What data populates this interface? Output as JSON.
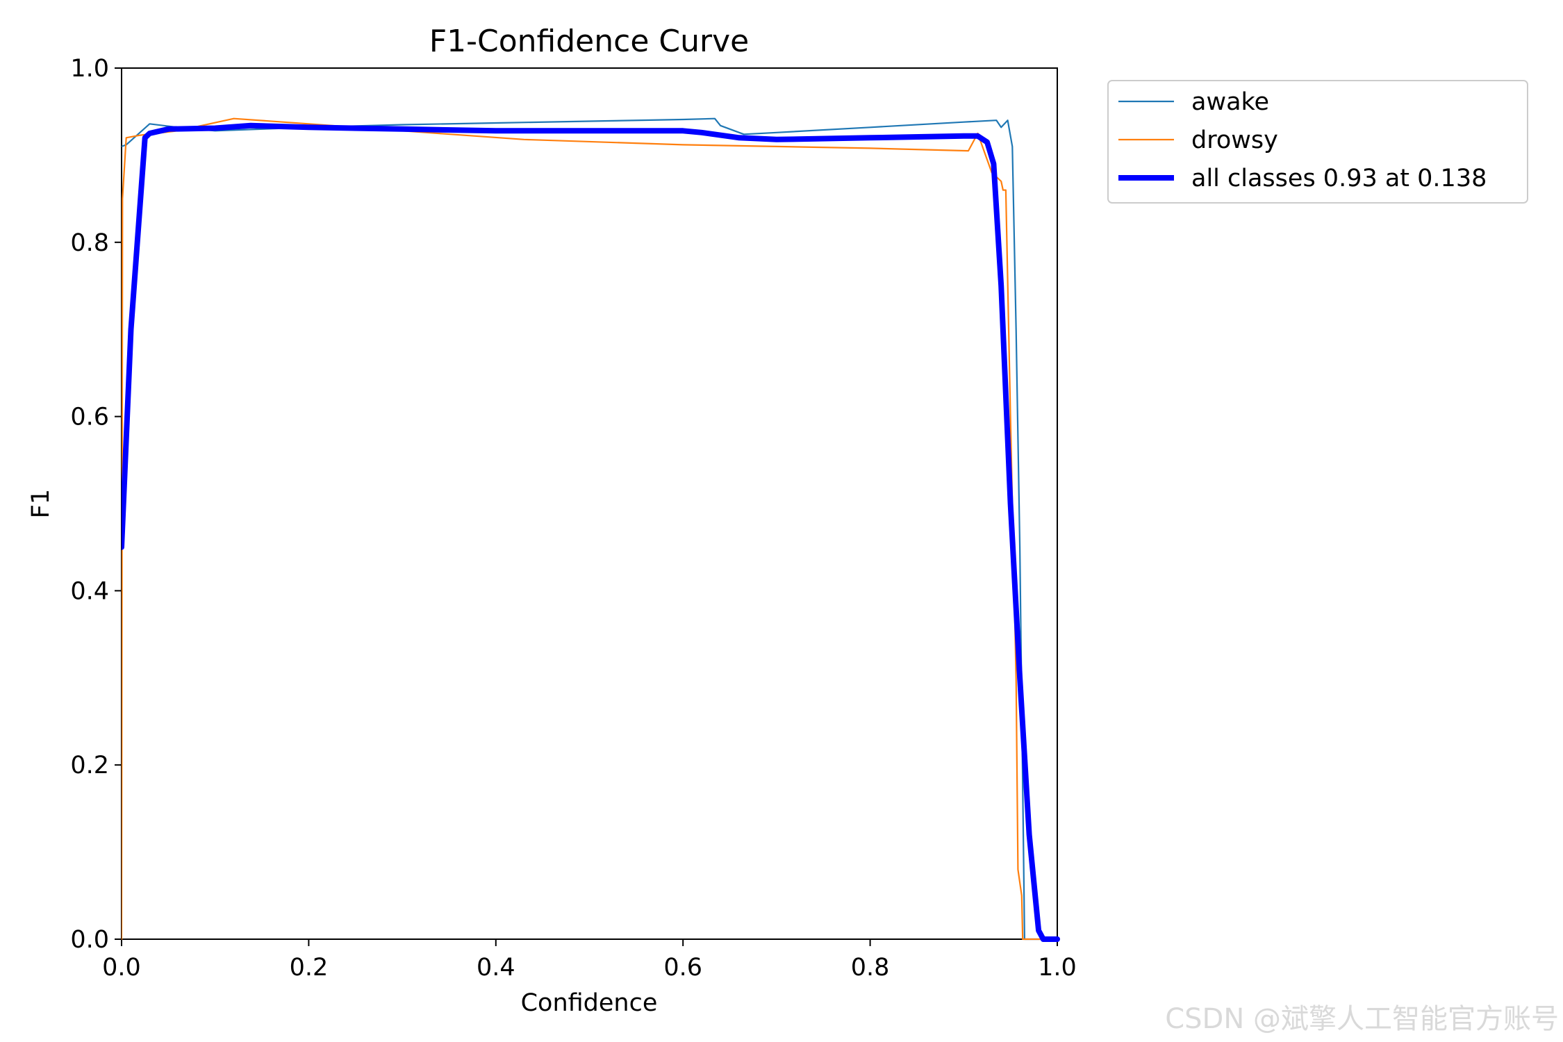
{
  "chart_data": {
    "type": "line",
    "title": "F1-Confidence Curve",
    "xlabel": "Confidence",
    "ylabel": "F1",
    "xlim": [
      0.0,
      1.0
    ],
    "ylim": [
      0.0,
      1.0
    ],
    "xticks": [
      "0.0",
      "0.2",
      "0.4",
      "0.6",
      "0.8",
      "1.0"
    ],
    "yticks": [
      "0.0",
      "0.2",
      "0.4",
      "0.6",
      "0.8",
      "1.0"
    ],
    "grid": false,
    "legend_position": "outside-top-right",
    "series": [
      {
        "name": "awake",
        "color": "#1f77b4",
        "line_width": "thin",
        "x": [
          0.0,
          0.005,
          0.03,
          0.06,
          0.1,
          0.2,
          0.3,
          0.4,
          0.5,
          0.6,
          0.634,
          0.64,
          0.665,
          0.7,
          0.8,
          0.9,
          0.935,
          0.94,
          0.947,
          0.952,
          0.956,
          0.96,
          0.965,
          0.975,
          1.0
        ],
        "y": [
          0.91,
          0.912,
          0.936,
          0.932,
          0.928,
          0.932,
          0.935,
          0.937,
          0.939,
          0.941,
          0.942,
          0.934,
          0.924,
          0.926,
          0.932,
          0.938,
          0.94,
          0.932,
          0.94,
          0.91,
          0.7,
          0.45,
          0.0,
          0.0,
          0.0
        ]
      },
      {
        "name": "drowsy",
        "color": "#ff7f0e",
        "line_width": "thin",
        "x": [
          0.0,
          0.001,
          0.005,
          0.02,
          0.06,
          0.12,
          0.2,
          0.3,
          0.43,
          0.6,
          0.7,
          0.8,
          0.905,
          0.915,
          0.93,
          0.94,
          0.942,
          0.945,
          0.95,
          0.956,
          0.958,
          0.962,
          0.963,
          1.0
        ],
        "y": [
          0.0,
          0.85,
          0.92,
          0.923,
          0.928,
          0.942,
          0.936,
          0.928,
          0.918,
          0.912,
          0.91,
          0.908,
          0.905,
          0.925,
          0.88,
          0.87,
          0.86,
          0.86,
          0.6,
          0.3,
          0.08,
          0.05,
          0.0,
          0.0
        ]
      },
      {
        "name": "all classes 0.93 at 0.138",
        "color": "#0000ff",
        "line_width": "thick",
        "x": [
          0.0,
          0.01,
          0.025,
          0.03,
          0.05,
          0.1,
          0.138,
          0.2,
          0.3,
          0.4,
          0.5,
          0.6,
          0.62,
          0.66,
          0.7,
          0.8,
          0.9,
          0.915,
          0.925,
          0.932,
          0.94,
          0.95,
          0.96,
          0.97,
          0.98,
          0.985,
          0.99,
          1.0
        ],
        "y": [
          0.45,
          0.7,
          0.92,
          0.925,
          0.93,
          0.931,
          0.934,
          0.932,
          0.93,
          0.928,
          0.928,
          0.928,
          0.926,
          0.92,
          0.918,
          0.92,
          0.922,
          0.922,
          0.915,
          0.89,
          0.75,
          0.5,
          0.3,
          0.12,
          0.01,
          0.0,
          0.0,
          0.0
        ]
      }
    ]
  },
  "watermark": "CSDN @斌擎人工智能官方账号"
}
